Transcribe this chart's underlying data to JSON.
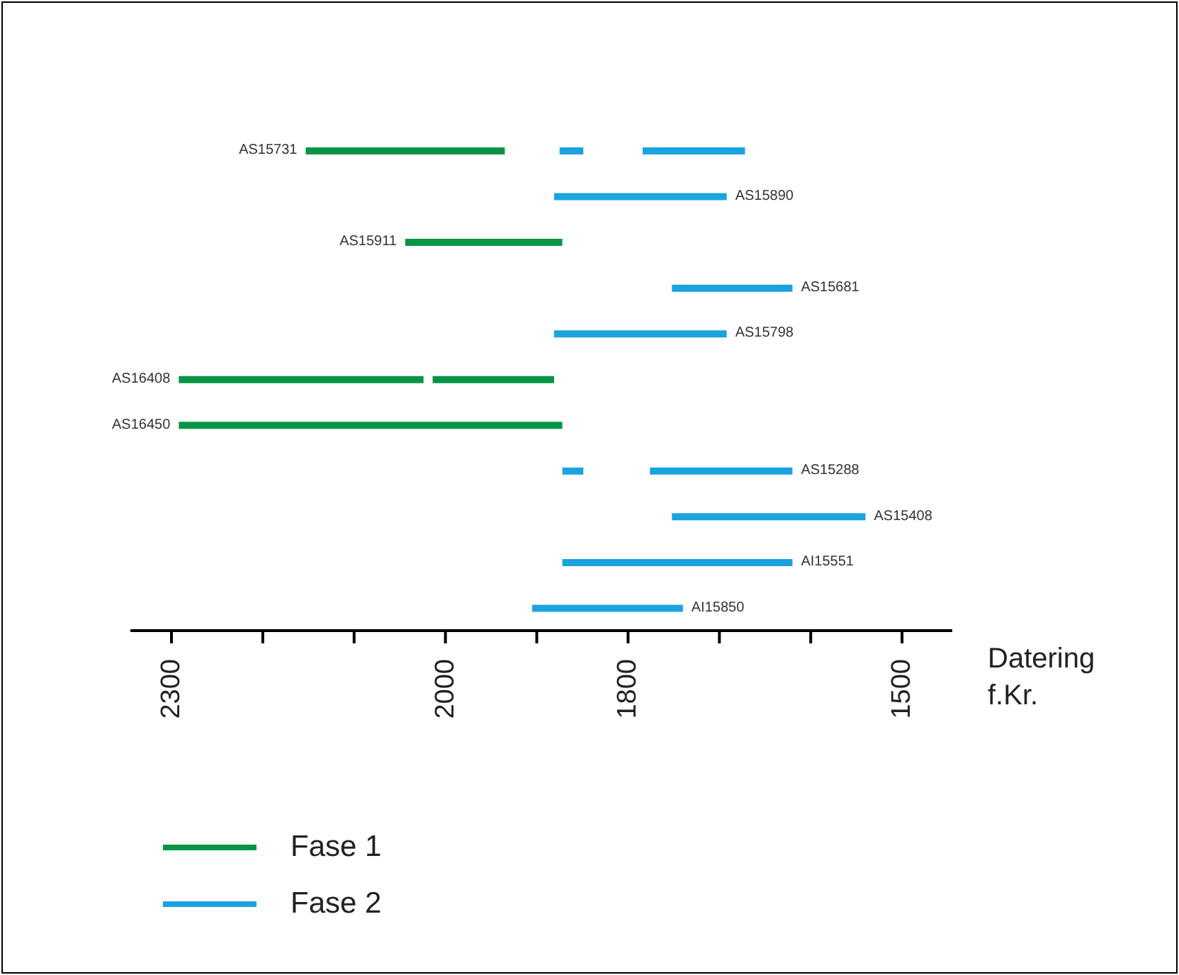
{
  "chart_data": {
    "type": "bar",
    "orientation": "horizontal",
    "xlabel": "Datering f.Kr.",
    "categories": [
      "AS15731",
      "AS15890",
      "AS15911",
      "AS15681",
      "AS15798",
      "AS16408",
      "AS16450",
      "AS15288",
      "AS15408",
      "AI15551",
      "AI15850"
    ],
    "series": [
      {
        "name": "Fase 1",
        "color": "#079447",
        "base": [
          1935,
          null,
          1872,
          null,
          null,
          2024,
          1872,
          null,
          null,
          null,
          null
        ],
        "values": [
          218,
          null,
          172,
          null,
          null,
          268,
          420,
          null,
          null,
          null,
          null
        ]
      },
      {
        "color": "#079447",
        "base": [
          null,
          null,
          null,
          null,
          null,
          1881,
          null,
          null,
          null,
          null,
          null
        ],
        "values": [
          null,
          null,
          null,
          null,
          null,
          133,
          null,
          null,
          null,
          null,
          null
        ]
      },
      {
        "name": "Fase 2",
        "color": "#1aa3de",
        "base": [
          1849,
          1692,
          null,
          1620,
          1692,
          null,
          null,
          1849,
          1540,
          1620,
          1740
        ],
        "values": [
          26,
          189,
          null,
          132,
          189,
          null,
          null,
          23,
          212,
          252,
          165
        ]
      },
      {
        "color": "#1aa3de",
        "base": [
          1672,
          null,
          null,
          null,
          null,
          null,
          null,
          1620,
          null,
          null,
          null
        ],
        "values": [
          112,
          null,
          null,
          null,
          null,
          null,
          null,
          156,
          null,
          null,
          null
        ]
      }
    ],
    "xlim": [
      2345,
      1445
    ],
    "xticks": [
      2300,
      {
        "value": 2200,
        "label": null
      },
      {
        "value": 2100,
        "label": null
      },
      2000,
      {
        "value": 1900,
        "label": null
      },
      1800,
      {
        "value": 1700,
        "label": null
      },
      {
        "value": 1600,
        "label": null
      },
      1500
    ],
    "legend": "bottom left"
  }
}
